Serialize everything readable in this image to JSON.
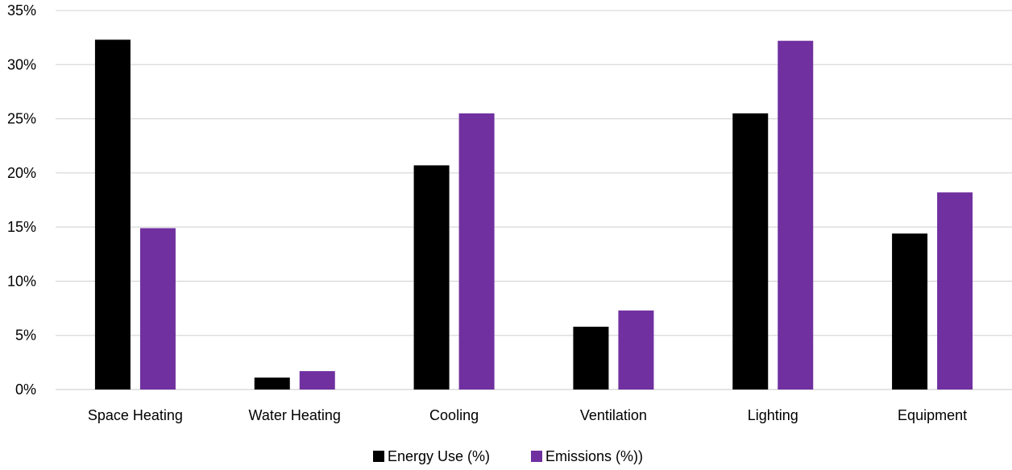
{
  "chart_data": {
    "type": "bar",
    "title": "",
    "xlabel": "",
    "ylabel": "",
    "categories": [
      "Space Heating",
      "Water Heating",
      "Cooling",
      "Ventilation",
      "Lighting",
      "Equipment"
    ],
    "series": [
      {
        "name": "Energy Use (%)",
        "color": "#000000",
        "values": [
          32.3,
          1.1,
          20.7,
          5.8,
          25.5,
          14.4
        ]
      },
      {
        "name": "Emissions (%))",
        "color": "#7030a0",
        "values": [
          14.9,
          1.7,
          25.5,
          7.3,
          32.2,
          18.2
        ]
      }
    ],
    "ylim": [
      0,
      35
    ],
    "yticks": [
      0,
      5,
      10,
      15,
      20,
      25,
      30,
      35
    ],
    "ytick_labels": [
      "0%",
      "5%",
      "10%",
      "15%",
      "20%",
      "25%",
      "30%",
      "35%"
    ],
    "grid": true,
    "legend_position": "bottom"
  }
}
